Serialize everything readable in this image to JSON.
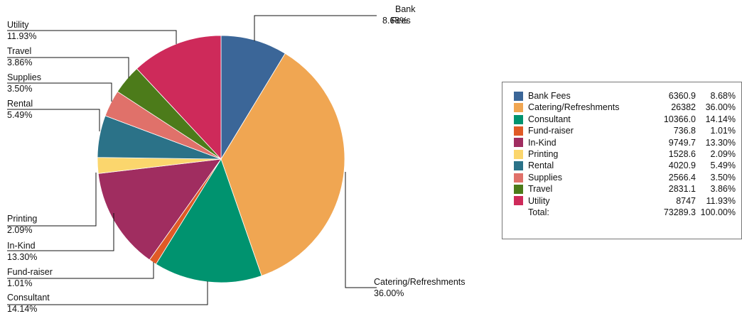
{
  "chart_data": {
    "type": "pie",
    "title": "",
    "slices": [
      {
        "label": "Bank Fees",
        "callout": [
          "Bank",
          "Fees"
        ],
        "value": 6360.9,
        "percent": "8.68%",
        "color": "#3b6698"
      },
      {
        "label": "Catering/Refreshments",
        "callout": [
          "Catering/Refreshments"
        ],
        "value": 26382,
        "percent": "36.00%",
        "color": "#f0a652"
      },
      {
        "label": "Consultant",
        "callout": [
          "Consultant"
        ],
        "value": 10366.0,
        "percent": "14.14%",
        "color": "#00936f"
      },
      {
        "label": "Fund-raiser",
        "callout": [
          "Fund-raiser"
        ],
        "value": 736.8,
        "percent": "1.01%",
        "color": "#e05a26"
      },
      {
        "label": "In-Kind",
        "callout": [
          "In-Kind"
        ],
        "value": 9749.7,
        "percent": "13.30%",
        "color": "#a02d60"
      },
      {
        "label": "Printing",
        "callout": [
          "Printing"
        ],
        "value": 1528.6,
        "percent": "2.09%",
        "color": "#fbd66d"
      },
      {
        "label": "Rental",
        "callout": [
          "Rental"
        ],
        "value": 4020.9,
        "percent": "5.49%",
        "color": "#2b7288"
      },
      {
        "label": "Supplies",
        "callout": [
          "Supplies"
        ],
        "value": 2566.4,
        "percent": "3.50%",
        "color": "#e0716a"
      },
      {
        "label": "Travel",
        "callout": [
          "Travel"
        ],
        "value": 2831.1,
        "percent": "3.86%",
        "color": "#4c7b1a"
      },
      {
        "label": "Utility",
        "callout": [
          "Utility"
        ],
        "value": 8747,
        "percent": "11.93%",
        "color": "#ce2a5a"
      }
    ],
    "legend": {
      "placement": "right",
      "total_label": "Total:",
      "total_value": "73289.3",
      "total_percent": "100.00%"
    }
  }
}
